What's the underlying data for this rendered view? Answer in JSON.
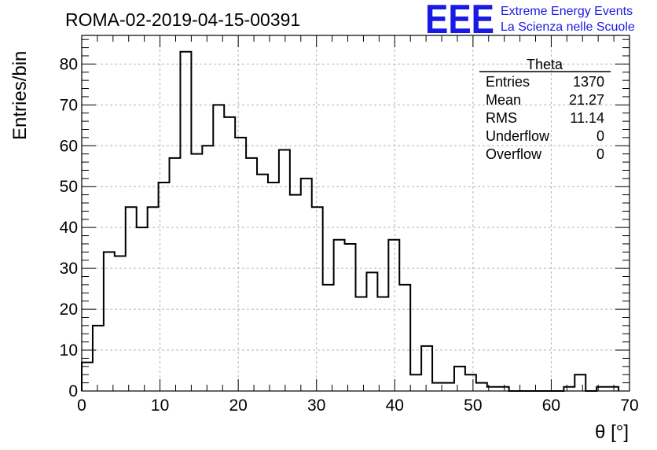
{
  "header": {
    "title": "ROMA-02-2019-04-15-00391",
    "logo": "EEE",
    "brand_line1": "Extreme Energy Events",
    "brand_line2": "La Scienza nelle Scuole",
    "brand_color": "#1a1ae6"
  },
  "stats": {
    "title": "Theta",
    "rows": [
      {
        "label": "Entries",
        "value": "1370"
      },
      {
        "label": "Mean",
        "value": "21.27"
      },
      {
        "label": "RMS",
        "value": "11.14"
      },
      {
        "label": "Underflow",
        "value": "0"
      },
      {
        "label": "Overflow",
        "value": "0"
      }
    ]
  },
  "chart_data": {
    "type": "bar",
    "histogram": true,
    "bin_edges_start": 0,
    "bin_width": 1.4,
    "values": [
      7,
      16,
      34,
      33,
      45,
      40,
      45,
      51,
      57,
      83,
      58,
      60,
      70,
      67,
      62,
      57,
      53,
      51,
      59,
      48,
      52,
      45,
      26,
      37,
      36,
      23,
      29,
      23,
      37,
      26,
      4,
      11,
      2,
      2,
      6,
      4,
      2,
      1,
      1,
      0,
      0,
      0,
      0,
      0,
      1,
      4,
      0,
      1,
      1
    ],
    "xlabel": "θ [°]",
    "ylabel": "Entries/bin",
    "xlim": [
      0,
      70
    ],
    "ylim": [
      0,
      87
    ],
    "x_ticks": [
      0,
      10,
      20,
      30,
      40,
      50,
      60,
      70
    ],
    "y_ticks": [
      0,
      10,
      20,
      30,
      40,
      50,
      60,
      70,
      80
    ],
    "grid": true,
    "line_color": "#000000"
  }
}
